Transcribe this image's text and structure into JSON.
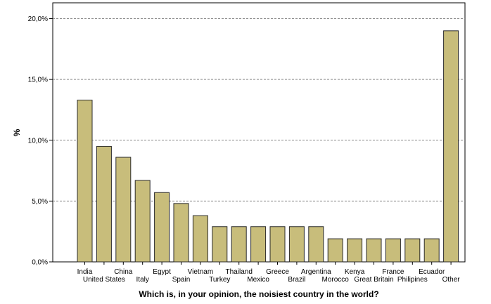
{
  "chart_data": {
    "type": "bar",
    "xlabel": "Which is, in your opinion, the noisiest country in the world?",
    "ylabel": "%",
    "ylim": [
      0,
      21.3
    ],
    "yticks": [
      0,
      5,
      10,
      15,
      20
    ],
    "ytick_labels": [
      "0,0%",
      "5,0%",
      "10,0%",
      "15,0%",
      "20,0%"
    ],
    "grid": "horizontal dashed",
    "categories": [
      "India",
      "United States",
      "China",
      "Italy",
      "Egypt",
      "Spain",
      "Vietnam",
      "Turkey",
      "Thailand",
      "Mexico",
      "Greece",
      "Brazil",
      "Argentina",
      "Morocco",
      "Kenya",
      "Great Britain",
      "France",
      "Philipines",
      "Ecuador",
      "Other"
    ],
    "values": [
      13.3,
      9.5,
      8.6,
      6.7,
      5.7,
      4.8,
      3.8,
      2.9,
      2.9,
      2.9,
      2.9,
      2.9,
      2.9,
      1.9,
      1.9,
      1.9,
      1.9,
      1.9,
      1.9,
      19.0
    ],
    "colors": {
      "bar_fill": "#c8bd7b",
      "bar_stroke": "#2a2a2a",
      "grid": "#8c8c8c",
      "axis": "#000000"
    }
  }
}
